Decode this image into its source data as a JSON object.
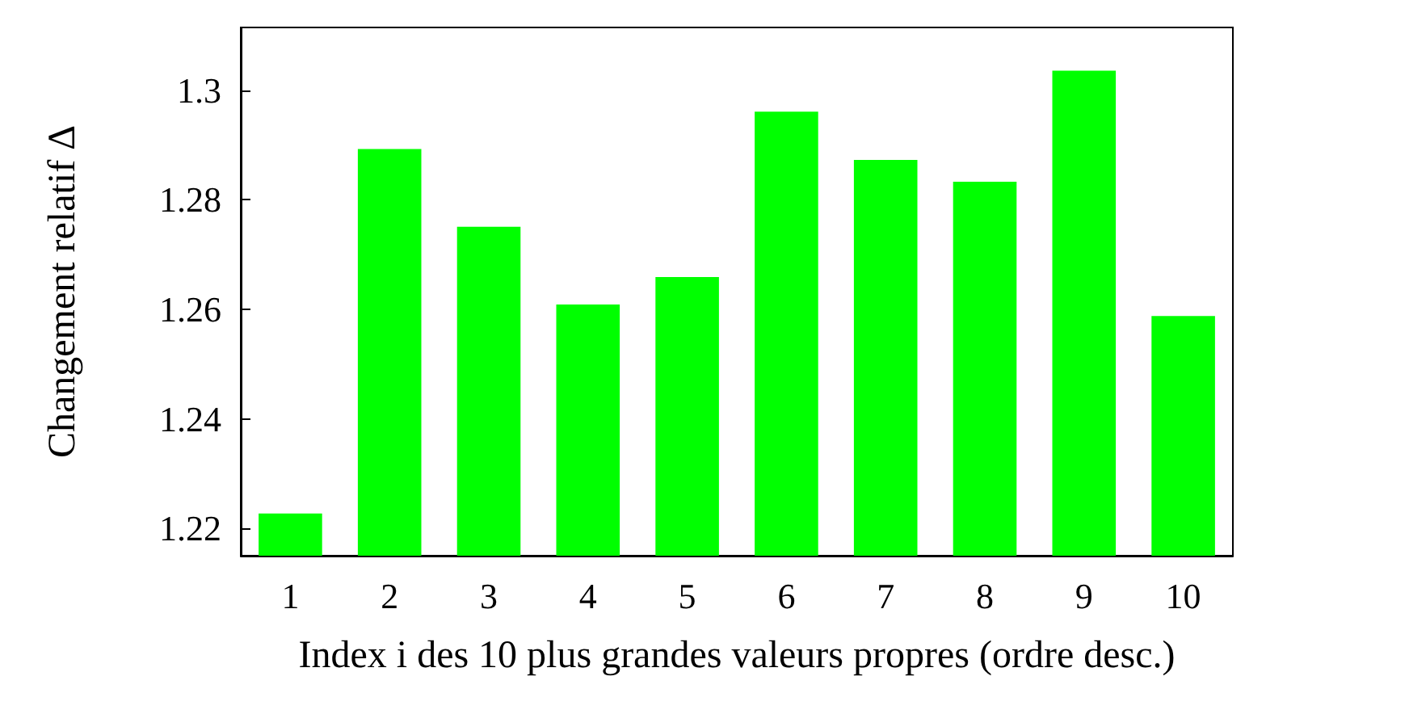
{
  "chart_data": {
    "type": "bar",
    "xlabel": "Index i des 10 plus grandes valeurs propres (ordre desc.)",
    "ylabel": "Changement relatif Δ",
    "categories": [
      "1",
      "2",
      "3",
      "4",
      "5",
      "6",
      "7",
      "8",
      "9",
      "10"
    ],
    "values": [
      1.2227,
      1.2893,
      1.2751,
      1.2609,
      1.2659,
      1.2961,
      1.2873,
      1.2833,
      1.3036,
      1.2588
    ],
    "color": "#00ff00",
    "ylim": [
      1.215,
      1.3115
    ],
    "yticks": [
      1.22,
      1.24,
      1.26,
      1.28,
      1.3
    ],
    "grid": false
  }
}
